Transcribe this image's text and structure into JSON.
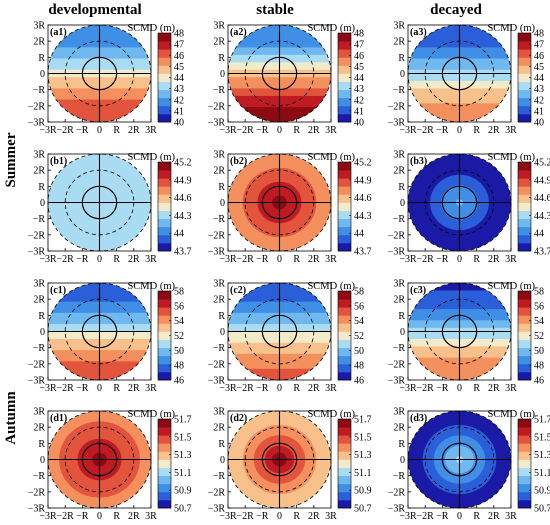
{
  "column_titles": [
    "developmental",
    "stable",
    "decayed"
  ],
  "season_labels": [
    "Summer",
    "Autumn"
  ],
  "colorbar_title": "SCMD (m)",
  "axis_ticks": [
    "−3R",
    "−2R",
    "−R",
    "0",
    "R",
    "2R",
    "3R"
  ],
  "colorscale": [
    "#1a1aa6",
    "#2b5fd9",
    "#3f8fe6",
    "#6fb9f0",
    "#a9dcf2",
    "#f2ebc9",
    "#f8c08a",
    "#f3905e",
    "#e2543c",
    "#c01a22",
    "#8e0a12"
  ],
  "chart_data": [
    {
      "type": "heatmap",
      "panel": "(a1)",
      "pattern": "meridional",
      "colorbar_ticks": [
        48,
        47,
        46,
        45,
        44,
        43,
        42,
        41,
        40
      ],
      "clim": [
        40,
        48
      ],
      "north_value": 41.5,
      "south_value": 46.5,
      "xlabel": "",
      "ylabel": "",
      "xlim": [
        -3,
        3
      ],
      "ylim": [
        -3,
        3
      ]
    },
    {
      "type": "heatmap",
      "panel": "(a2)",
      "pattern": "meridional",
      "colorbar_ticks": [
        48,
        47,
        46,
        45,
        44,
        43,
        42,
        41,
        40
      ],
      "clim": [
        40,
        48
      ],
      "north_value": 41.5,
      "south_value": 47.6,
      "xlabel": "",
      "ylabel": "",
      "xlim": [
        -3,
        3
      ],
      "ylim": [
        -3,
        3
      ]
    },
    {
      "type": "heatmap",
      "panel": "(a3)",
      "pattern": "meridional",
      "colorbar_ticks": [
        48,
        47,
        46,
        45,
        44,
        43,
        42,
        41,
        40
      ],
      "clim": [
        40,
        48
      ],
      "north_value": 40.8,
      "south_value": 45.6,
      "xlabel": "",
      "ylabel": "",
      "xlim": [
        -3,
        3
      ],
      "ylim": [
        -3,
        3
      ]
    },
    {
      "type": "heatmap",
      "panel": "(b1)",
      "pattern": "radial",
      "colorbar_ticks": [
        45.2,
        44.9,
        44.6,
        44.3,
        44,
        43.7
      ],
      "clim": [
        43.7,
        45.2
      ],
      "center_value": 44.32,
      "edge_value": 44.25,
      "xlabel": "",
      "ylabel": "",
      "xlim": [
        -3,
        3
      ],
      "ylim": [
        -3,
        3
      ]
    },
    {
      "type": "heatmap",
      "panel": "(b2)",
      "pattern": "radial",
      "colorbar_ticks": [
        45.2,
        44.9,
        44.6,
        44.3,
        44,
        43.7
      ],
      "clim": [
        43.7,
        45.2
      ],
      "center_value": 45.15,
      "edge_value": 44.75,
      "xlabel": "",
      "ylabel": "",
      "xlim": [
        -3,
        3
      ],
      "ylim": [
        -3,
        3
      ]
    },
    {
      "type": "heatmap",
      "panel": "(b3)",
      "pattern": "radial",
      "colorbar_ticks": [
        45.2,
        44.9,
        44.6,
        44.3,
        44,
        43.7
      ],
      "clim": [
        43.7,
        45.2
      ],
      "center_value": 44.15,
      "edge_value": 43.72,
      "xlabel": "",
      "ylabel": "",
      "xlim": [
        -3,
        3
      ],
      "ylim": [
        -3,
        3
      ]
    },
    {
      "type": "heatmap",
      "panel": "(c1)",
      "pattern": "meridional",
      "colorbar_ticks": [
        58,
        56,
        54,
        52,
        50,
        48,
        46
      ],
      "clim": [
        46,
        58
      ],
      "north_value": 47.5,
      "south_value": 55.5,
      "xlabel": "",
      "ylabel": "",
      "xlim": [
        -3,
        3
      ],
      "ylim": [
        -3,
        3
      ]
    },
    {
      "type": "heatmap",
      "panel": "(c2)",
      "pattern": "meridional",
      "colorbar_ticks": [
        58,
        56,
        54,
        52,
        50,
        48,
        46
      ],
      "clim": [
        46,
        58
      ],
      "north_value": 47.5,
      "south_value": 55.0,
      "xlabel": "",
      "ylabel": "",
      "xlim": [
        -3,
        3
      ],
      "ylim": [
        -3,
        3
      ]
    },
    {
      "type": "heatmap",
      "panel": "(c3)",
      "pattern": "meridional",
      "colorbar_ticks": [
        58,
        56,
        54,
        52,
        50,
        48,
        46
      ],
      "clim": [
        46,
        58
      ],
      "north_value": 47.0,
      "south_value": 54.5,
      "xlabel": "",
      "ylabel": "",
      "xlim": [
        -3,
        3
      ],
      "ylim": [
        -3,
        3
      ]
    },
    {
      "type": "heatmap",
      "panel": "(d1)",
      "pattern": "radial",
      "colorbar_ticks": [
        51.7,
        51.5,
        51.3,
        51.1,
        50.9,
        50.7
      ],
      "clim": [
        50.7,
        51.7
      ],
      "center_value": 51.65,
      "edge_value": 51.42,
      "xlabel": "",
      "ylabel": "",
      "xlim": [
        -3,
        3
      ],
      "ylim": [
        -3,
        3
      ]
    },
    {
      "type": "heatmap",
      "panel": "(d2)",
      "pattern": "radial",
      "colorbar_ticks": [
        51.7,
        51.5,
        51.3,
        51.1,
        50.9,
        50.7
      ],
      "clim": [
        50.7,
        51.7
      ],
      "center_value": 51.68,
      "edge_value": 51.28,
      "xlabel": "",
      "ylabel": "",
      "xlim": [
        -3,
        3
      ],
      "ylim": [
        -3,
        3
      ]
    },
    {
      "type": "heatmap",
      "panel": "(d3)",
      "pattern": "radial",
      "colorbar_ticks": [
        51.7,
        51.5,
        51.3,
        51.1,
        50.9,
        50.7
      ],
      "clim": [
        50.7,
        51.7
      ],
      "center_value": 51.12,
      "edge_value": 50.75,
      "xlabel": "",
      "ylabel": "",
      "xlim": [
        -3,
        3
      ],
      "ylim": [
        -3,
        3
      ]
    }
  ]
}
